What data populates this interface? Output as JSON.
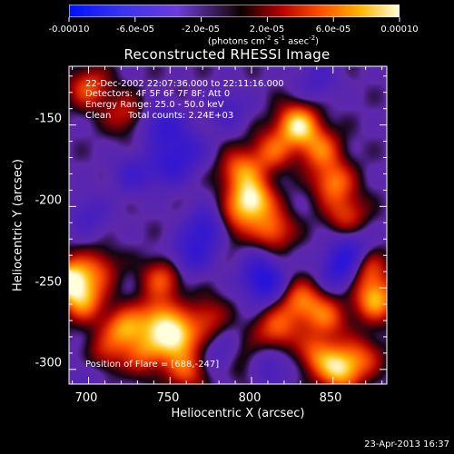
{
  "colorbar": {
    "tick_labels": [
      "-0.00010",
      "-6.0e-05",
      "-2.0e-05",
      "2.0e-05",
      "6.0e-05",
      "0.00010"
    ],
    "unit_parts": [
      "(photons cm",
      "-2",
      " s",
      "-1",
      " asec",
      "-2",
      ")"
    ]
  },
  "annotation": {
    "line1": "22-Dec-2002 22:07:36.000 to 22:11:16.000",
    "line2": "Detectors: 4F 5F 6F 7F 8F; Att 0",
    "line3": "Energy Range: 25.0 - 50.0 keV",
    "line4_method": "Clean",
    "line4_counts": "Total counts: 2.24E+03",
    "flare_position": "Position of Flare = [688,-247]"
  },
  "timestamp": "23-Apr-2013 16:37",
  "chart_data": {
    "type": "heatmap",
    "title": "Reconstructed RHESSI Image",
    "xlabel": "Heliocentric X (arcsec)",
    "ylabel": "Heliocentric Y (arcsec)",
    "xlim": [
      688,
      883
    ],
    "ylim": [
      -309,
      -114
    ],
    "xticks": [
      700,
      750,
      800,
      850
    ],
    "yticks": [
      -150,
      -200,
      -250,
      -300
    ],
    "colorbar_range": [
      -0.0001,
      0.0001
    ],
    "blobs": [
      {
        "x": 688,
        "y": -245,
        "v": 9.5e-05
      },
      {
        "x": 697,
        "y": -258,
        "v": 6e-05
      },
      {
        "x": 706,
        "y": -238,
        "v": 4e-05
      },
      {
        "x": 722,
        "y": -275,
        "v": 7e-05
      },
      {
        "x": 742,
        "y": -268,
        "v": 6e-05
      },
      {
        "x": 753,
        "y": -280,
        "v": 9e-05
      },
      {
        "x": 735,
        "y": -290,
        "v": 5e-05
      },
      {
        "x": 708,
        "y": -292,
        "v": 4e-05
      },
      {
        "x": 760,
        "y": -300,
        "v": 5e-05
      },
      {
        "x": 745,
        "y": -244,
        "v": 5e-05
      },
      {
        "x": 772,
        "y": -268,
        "v": 4e-05
      },
      {
        "x": 800,
        "y": -196,
        "v": 9.5e-05
      },
      {
        "x": 793,
        "y": -178,
        "v": 6e-05
      },
      {
        "x": 813,
        "y": -214,
        "v": 5.5e-05
      },
      {
        "x": 787,
        "y": -210,
        "v": 4e-05
      },
      {
        "x": 828,
        "y": -150,
        "v": 9e-05
      },
      {
        "x": 842,
        "y": -165,
        "v": 5.5e-05
      },
      {
        "x": 812,
        "y": -166,
        "v": 5e-05
      },
      {
        "x": 850,
        "y": -185,
        "v": 6e-05
      },
      {
        "x": 858,
        "y": -205,
        "v": 4.5e-05
      },
      {
        "x": 870,
        "y": -238,
        "v": 5.5e-05
      },
      {
        "x": 876,
        "y": -257,
        "v": 7.5e-05
      },
      {
        "x": 830,
        "y": -258,
        "v": 6e-05
      },
      {
        "x": 846,
        "y": -268,
        "v": 5e-05
      },
      {
        "x": 815,
        "y": -275,
        "v": 5.5e-05
      },
      {
        "x": 795,
        "y": -295,
        "v": 3e-05
      },
      {
        "x": 854,
        "y": -300,
        "v": 8e-05
      },
      {
        "x": 840,
        "y": -290,
        "v": 5e-05
      },
      {
        "x": 868,
        "y": -292,
        "v": 4e-05
      },
      {
        "x": 700,
        "y": -127,
        "v": 5e-05
      },
      {
        "x": 722,
        "y": -143,
        "v": 3.5e-05
      },
      {
        "x": 745,
        "y": -150,
        "v": -5e-05
      },
      {
        "x": 760,
        "y": -165,
        "v": -4e-05
      },
      {
        "x": 773,
        "y": -213,
        "v": -6e-05
      },
      {
        "x": 762,
        "y": -230,
        "v": -4.5e-05
      },
      {
        "x": 808,
        "y": -248,
        "v": -4.5e-05
      },
      {
        "x": 805,
        "y": -240,
        "v": -3.5e-05
      },
      {
        "x": 855,
        "y": -238,
        "v": -6e-05
      },
      {
        "x": 862,
        "y": -226,
        "v": -4e-05
      },
      {
        "x": 748,
        "y": -176,
        "v": -4e-05
      },
      {
        "x": 810,
        "y": -298,
        "v": -3.5e-05
      },
      {
        "x": 782,
        "y": -292,
        "v": -3e-05
      },
      {
        "x": 727,
        "y": -180,
        "v": -3.5e-05
      },
      {
        "x": 785,
        "y": -140,
        "v": -3e-05
      },
      {
        "x": 840,
        "y": -122,
        "v": -3e-05
      },
      {
        "x": 700,
        "y": -205,
        "v": -3e-05
      },
      {
        "x": 700,
        "y": -300,
        "v": -2.5e-05
      }
    ]
  }
}
